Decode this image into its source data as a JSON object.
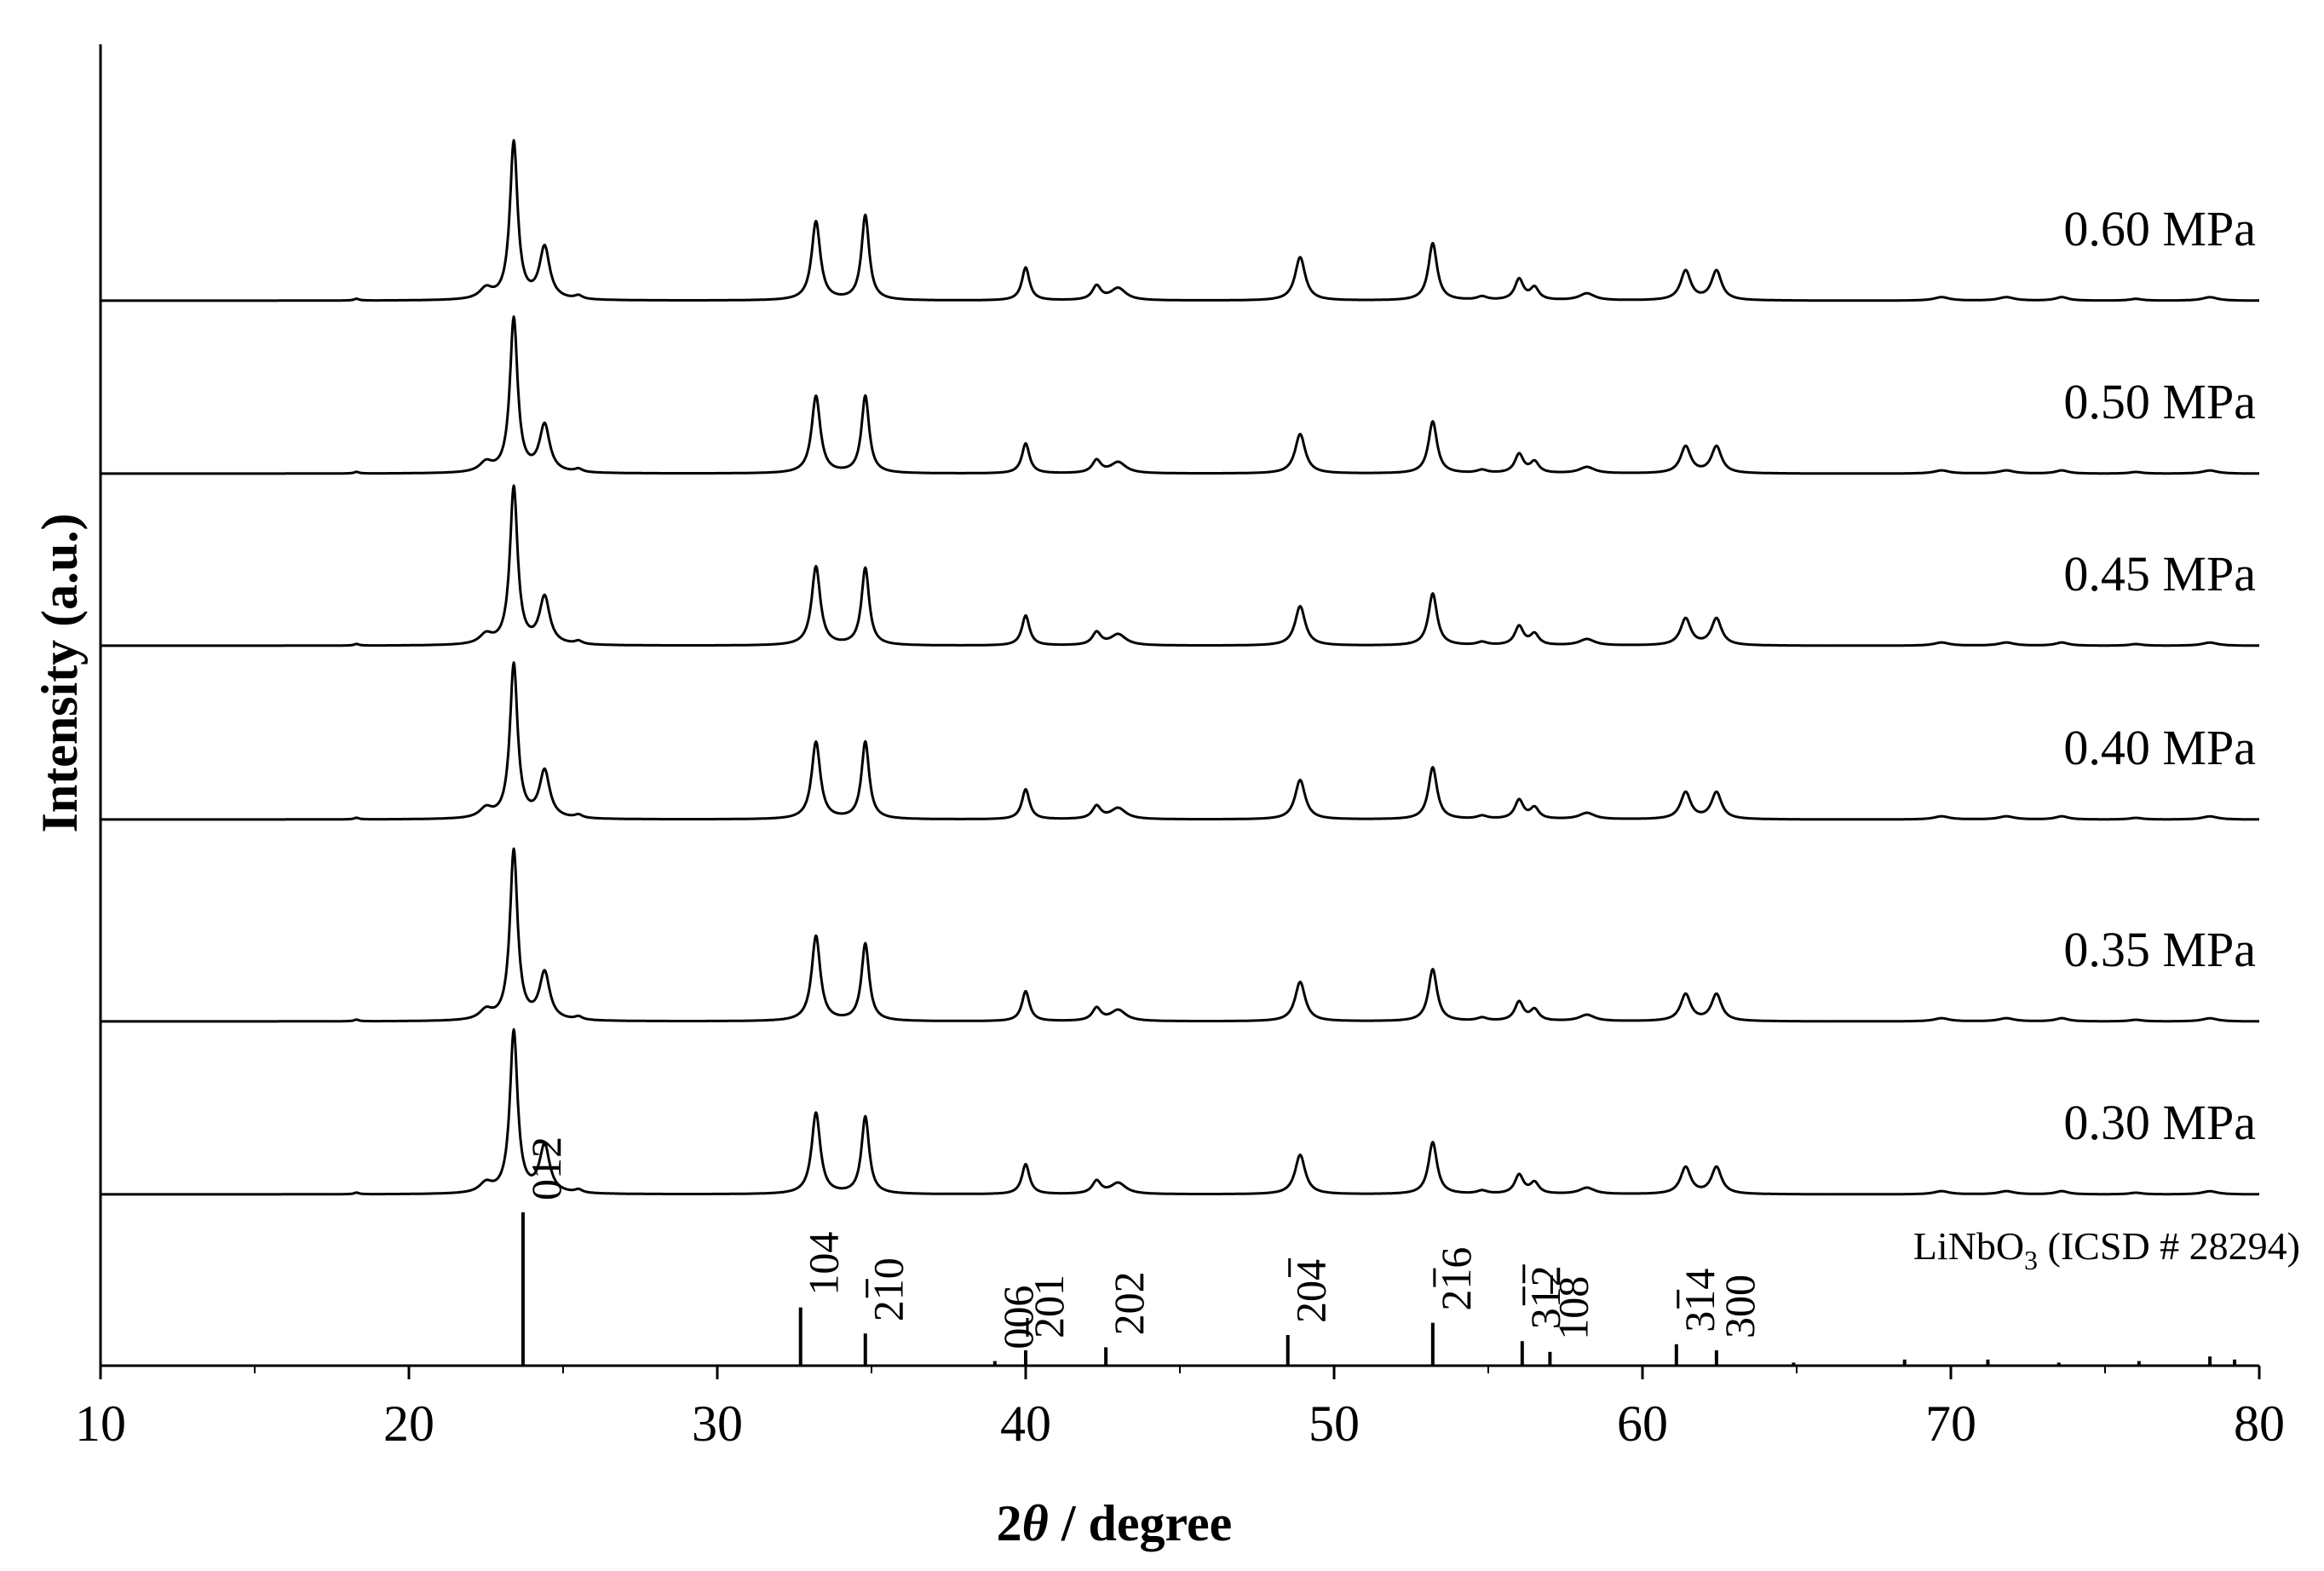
{
  "chart_data": {
    "type": "line",
    "xlabel_prefix": "2",
    "xlabel_symbol": "θ",
    "xlabel_suffix": " / degree",
    "ylabel": "Intensity (a.u.)",
    "xlim": [
      10,
      80
    ],
    "xticks": [
      "10",
      "20",
      "30",
      "40",
      "50",
      "60",
      "70",
      "80"
    ],
    "grid": false,
    "line_color": "#000000",
    "series": [
      {
        "name": "0.60 MPa",
        "scale": 1.0,
        "minor_scale": 1.1
      },
      {
        "name": "0.50 MPa",
        "scale": 0.98,
        "minor_scale": 1.0
      },
      {
        "name": "0.45 MPa",
        "scale": 1.0,
        "minor_scale": 1.0
      },
      {
        "name": "0.40 MPa",
        "scale": 0.98,
        "minor_scale": 1.0
      },
      {
        "name": "0.35 MPa",
        "scale": 1.08,
        "minor_scale": 1.0
      },
      {
        "name": "0.30 MPa",
        "scale": 1.03,
        "minor_scale": 1.0
      }
    ],
    "peak_profile": {
      "peaks": [
        {
          "two_theta": 18.3,
          "intensity": 0.01,
          "width": 0.1
        },
        {
          "two_theta": 22.5,
          "intensity": 0.06,
          "width": 0.25
        },
        {
          "two_theta": 23.4,
          "intensity": 1.0,
          "width": 0.15
        },
        {
          "two_theta": 24.4,
          "intensity": 0.3,
          "width": 0.2
        },
        {
          "two_theta": 25.5,
          "intensity": 0.02,
          "width": 0.15
        },
        {
          "two_theta": 33.2,
          "intensity": 0.5,
          "width": 0.17
        },
        {
          "two_theta": 34.8,
          "intensity": 0.49,
          "width": 0.15
        },
        {
          "two_theta": 40.0,
          "intensity": 0.19,
          "width": 0.15
        },
        {
          "two_theta": 42.3,
          "intensity": 0.08,
          "width": 0.17
        },
        {
          "two_theta": 43.0,
          "intensity": 0.07,
          "width": 0.3
        },
        {
          "two_theta": 48.9,
          "intensity": 0.25,
          "width": 0.2
        },
        {
          "two_theta": 53.2,
          "intensity": 0.33,
          "width": 0.17
        },
        {
          "two_theta": 54.8,
          "intensity": 0.02,
          "width": 0.2
        },
        {
          "two_theta": 56.0,
          "intensity": 0.12,
          "width": 0.17
        },
        {
          "two_theta": 56.5,
          "intensity": 0.07,
          "width": 0.17
        },
        {
          "two_theta": 58.2,
          "intensity": 0.04,
          "width": 0.3
        },
        {
          "two_theta": 61.4,
          "intensity": 0.17,
          "width": 0.2
        },
        {
          "two_theta": 62.4,
          "intensity": 0.17,
          "width": 0.2
        },
        {
          "two_theta": 69.7,
          "intensity": 0.02,
          "width": 0.3
        },
        {
          "two_theta": 71.8,
          "intensity": 0.02,
          "width": 0.3
        },
        {
          "two_theta": 73.6,
          "intensity": 0.02,
          "width": 0.25
        },
        {
          "two_theta": 76.0,
          "intensity": 0.01,
          "width": 0.25
        },
        {
          "two_theta": 78.4,
          "intensity": 0.02,
          "width": 0.3
        }
      ]
    },
    "reference": {
      "name_pre": "LiNbO",
      "name_sub": "3",
      "name_post": " (ICSD # 28294)",
      "sticks": [
        {
          "two_theta": 23.7,
          "intensity": 1.0,
          "hkl_display": "012",
          "overbar": ""
        },
        {
          "two_theta": 32.7,
          "intensity": 0.38,
          "hkl_display": "104",
          "overbar": ""
        },
        {
          "two_theta": 34.8,
          "intensity": 0.21,
          "hkl_display": "210",
          "overbar": "1"
        },
        {
          "two_theta": 39.0,
          "intensity": 0.03,
          "hkl_display": "006",
          "overbar": ""
        },
        {
          "two_theta": 40.0,
          "intensity": 0.1,
          "hkl_display": "201",
          "overbar": "0"
        },
        {
          "two_theta": 42.6,
          "intensity": 0.12,
          "hkl_display": "202",
          "overbar": ""
        },
        {
          "two_theta": 48.5,
          "intensity": 0.2,
          "hkl_display": "204",
          "overbar": "2"
        },
        {
          "two_theta": 53.2,
          "intensity": 0.28,
          "hkl_display": "216",
          "overbar": "1"
        },
        {
          "two_theta": 56.1,
          "intensity": 0.16,
          "hkl_display": "312",
          "overbar": "1,2"
        },
        {
          "two_theta": 57.0,
          "intensity": 0.09,
          "hkl_display": "108",
          "overbar": "2"
        },
        {
          "two_theta": 61.1,
          "intensity": 0.14,
          "hkl_display": "314",
          "overbar": "1"
        },
        {
          "two_theta": 62.4,
          "intensity": 0.1,
          "hkl_display": "300",
          "overbar": ""
        },
        {
          "two_theta": 64.9,
          "intensity": 0.02,
          "hkl_display": "",
          "overbar": ""
        },
        {
          "two_theta": 68.5,
          "intensity": 0.04,
          "hkl_display": "",
          "overbar": ""
        },
        {
          "two_theta": 71.2,
          "intensity": 0.04,
          "hkl_display": "",
          "overbar": ""
        },
        {
          "two_theta": 73.5,
          "intensity": 0.02,
          "hkl_display": "",
          "overbar": ""
        },
        {
          "two_theta": 76.1,
          "intensity": 0.03,
          "hkl_display": "",
          "overbar": ""
        },
        {
          "two_theta": 78.4,
          "intensity": 0.06,
          "hkl_display": "",
          "overbar": ""
        },
        {
          "two_theta": 79.2,
          "intensity": 0.04,
          "hkl_display": "",
          "overbar": ""
        }
      ]
    }
  }
}
